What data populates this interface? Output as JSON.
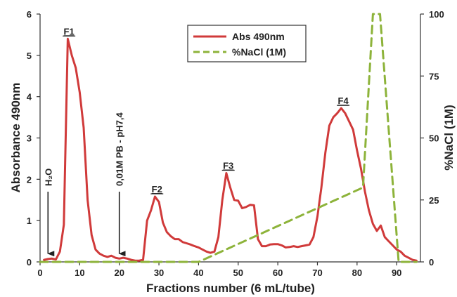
{
  "chart_data": {
    "type": "line",
    "xlabel": "Fractions number (6 mL/tube)",
    "ylabel": "Absorbance 490nm",
    "y2label": "%NaCl (1M)",
    "xlim": [
      0,
      96
    ],
    "ylim": [
      0,
      6
    ],
    "y2lim": [
      0,
      100
    ],
    "xticks": [
      "0",
      "10",
      "20",
      "30",
      "40",
      "50",
      "60",
      "70",
      "80",
      "90"
    ],
    "yticks": [
      "0",
      "1",
      "2",
      "3",
      "4",
      "5",
      "6"
    ],
    "y2ticks": [
      "0",
      "25",
      "50",
      "75",
      "100"
    ],
    "legend_position": "top-center",
    "grid": false,
    "series": [
      {
        "name": "Abs 490nm",
        "axis": "left",
        "color": "#d03a3a",
        "style": "solid",
        "points": [
          [
            1,
            0.05
          ],
          [
            2,
            0.07
          ],
          [
            3,
            0.08
          ],
          [
            4,
            0.06
          ],
          [
            5,
            0.25
          ],
          [
            6,
            0.9
          ],
          [
            7,
            5.4
          ],
          [
            8,
            5.0
          ],
          [
            9,
            4.7
          ],
          [
            10,
            4.1
          ],
          [
            11,
            3.25
          ],
          [
            12,
            1.5
          ],
          [
            13,
            0.65
          ],
          [
            14,
            0.3
          ],
          [
            15,
            0.2
          ],
          [
            16,
            0.15
          ],
          [
            17,
            0.12
          ],
          [
            18,
            0.15
          ],
          [
            19,
            0.1
          ],
          [
            20,
            0.08
          ],
          [
            21,
            0.1
          ],
          [
            22,
            0.08
          ],
          [
            23,
            0.05
          ],
          [
            24,
            0.03
          ],
          [
            25,
            0.03
          ],
          [
            26,
            0.05
          ],
          [
            27,
            1.0
          ],
          [
            28,
            1.25
          ],
          [
            29,
            1.58
          ],
          [
            30,
            1.45
          ],
          [
            31,
            0.95
          ],
          [
            32,
            0.72
          ],
          [
            33,
            0.62
          ],
          [
            34,
            0.55
          ],
          [
            35,
            0.55
          ],
          [
            36,
            0.48
          ],
          [
            37,
            0.45
          ],
          [
            38,
            0.42
          ],
          [
            39,
            0.38
          ],
          [
            40,
            0.35
          ],
          [
            41,
            0.3
          ],
          [
            42,
            0.25
          ],
          [
            43,
            0.22
          ],
          [
            44,
            0.25
          ],
          [
            45,
            0.6
          ],
          [
            46,
            1.5
          ],
          [
            47,
            2.15
          ],
          [
            48,
            1.8
          ],
          [
            49,
            1.5
          ],
          [
            50,
            1.48
          ],
          [
            51,
            1.3
          ],
          [
            52,
            1.33
          ],
          [
            53,
            1.38
          ],
          [
            54,
            1.37
          ],
          [
            55,
            0.55
          ],
          [
            56,
            0.38
          ],
          [
            57,
            0.38
          ],
          [
            58,
            0.42
          ],
          [
            59,
            0.43
          ],
          [
            60,
            0.43
          ],
          [
            61,
            0.4
          ],
          [
            62,
            0.35
          ],
          [
            63,
            0.36
          ],
          [
            64,
            0.38
          ],
          [
            65,
            0.36
          ],
          [
            66,
            0.38
          ],
          [
            67,
            0.4
          ],
          [
            68,
            0.42
          ],
          [
            69,
            0.6
          ],
          [
            70,
            1.1
          ],
          [
            71,
            1.8
          ],
          [
            72,
            2.65
          ],
          [
            73,
            3.3
          ],
          [
            74,
            3.5
          ],
          [
            75,
            3.6
          ],
          [
            76,
            3.72
          ],
          [
            77,
            3.6
          ],
          [
            78,
            3.4
          ],
          [
            79,
            3.2
          ],
          [
            80,
            2.7
          ],
          [
            81,
            2.25
          ],
          [
            82,
            1.7
          ],
          [
            83,
            1.25
          ],
          [
            84,
            0.92
          ],
          [
            85,
            0.75
          ],
          [
            86,
            0.88
          ],
          [
            87,
            0.6
          ],
          [
            88,
            0.5
          ],
          [
            89,
            0.4
          ],
          [
            90,
            0.3
          ],
          [
            91,
            0.25
          ],
          [
            92,
            0.15
          ],
          [
            93,
            0.1
          ],
          [
            94,
            0.05
          ],
          [
            95,
            0.03
          ]
        ]
      },
      {
        "name": "%NaCl (1M)",
        "axis": "right",
        "color": "#8db33a",
        "style": "dashed",
        "points": [
          [
            0,
            0
          ],
          [
            40,
            0
          ],
          [
            81.5,
            30
          ],
          [
            84,
            100
          ],
          [
            85.8,
            100
          ],
          [
            90.5,
            0
          ],
          [
            95,
            0
          ]
        ]
      }
    ],
    "peak_labels": [
      {
        "text": "F1",
        "x": 7.3,
        "y": 5.4
      },
      {
        "text": "F2",
        "x": 29.5,
        "y": 1.58
      },
      {
        "text": "F3",
        "x": 47.5,
        "y": 2.15
      },
      {
        "text": "F4",
        "x": 76.5,
        "y": 3.72
      }
    ],
    "annotations": [
      {
        "text": "H₂O",
        "x": 2,
        "arrow_from": 1.7,
        "arrow_to": 0.2
      },
      {
        "text": "0,01M PB - pH7,4",
        "x": 20,
        "arrow_from": 1.7,
        "arrow_to": 0.2
      }
    ]
  }
}
